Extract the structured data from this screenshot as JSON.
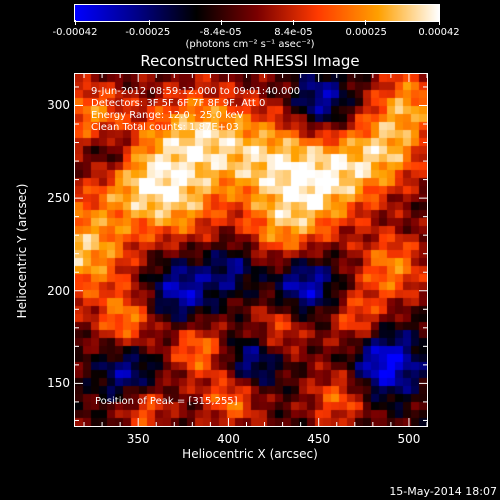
{
  "colorbar": {
    "tick_labels": [
      "-0.00042",
      "-0.00025",
      "-8.4e-05",
      "8.4e-05",
      "0.00025",
      "0.00042"
    ],
    "tick_values": [
      -0.00042,
      -0.00025,
      -8.4e-05,
      8.4e-05,
      0.00025,
      0.00042
    ],
    "range": [
      -0.00042,
      0.00042
    ],
    "units_label": "(photons cm⁻² s⁻¹ asec⁻²)",
    "colors": [
      "#0000ff",
      "#00008a",
      "#000000",
      "#7a0000",
      "#ff3a00",
      "#ffa000",
      "#ffffff"
    ]
  },
  "chart_data": {
    "type": "heatmap",
    "title": "Reconstructed RHESSI Image",
    "xlabel": "Heliocentric X (arcsec)",
    "ylabel": "Heliocentric Y (arcsec)",
    "xlim": [
      315,
      510
    ],
    "ylim": [
      127,
      317
    ],
    "x_ticks": [
      350,
      400,
      450,
      500
    ],
    "y_ticks": [
      150,
      200,
      250,
      300
    ],
    "annotations": {
      "time_range": "9-Jun-2012 08:59:12.000 to 09:01:40.000",
      "detectors": "Detectors: 3F 5F 6F 7F 8F 9F, Att 0",
      "energy_range": "Energy Range: 12.0 - 25.0 keV",
      "method": "Clean     Total counts: 1.87E+03",
      "peak": "Position of Peak = [315,255]"
    },
    "peak_position": [
      315,
      255
    ]
  },
  "footer": {
    "date": "15-May-2014 18:07"
  }
}
